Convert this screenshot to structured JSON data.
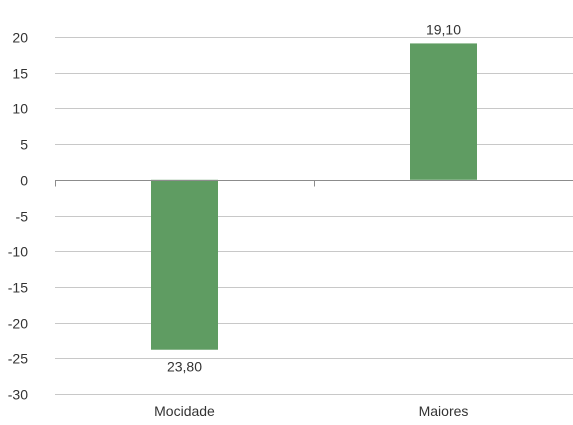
{
  "chart_data": {
    "type": "bar",
    "categories": [
      "Mocidade",
      "Maiores"
    ],
    "values": [
      -23.8,
      19.1
    ],
    "data_labels": [
      "23,80",
      "19,10"
    ],
    "y_ticks": [
      "20",
      "15",
      "10",
      "5",
      "0",
      "-5",
      "-10",
      "-15",
      "-20",
      "-25",
      "-30"
    ],
    "ylim": [
      -30,
      20
    ],
    "title": "",
    "xlabel": "",
    "ylabel": "",
    "grid": true,
    "legend": "none",
    "colors": {
      "bar": "#5f9c62",
      "grid": "#c8c8c8",
      "axis": "#8c8c8c",
      "text": "#333333"
    }
  }
}
